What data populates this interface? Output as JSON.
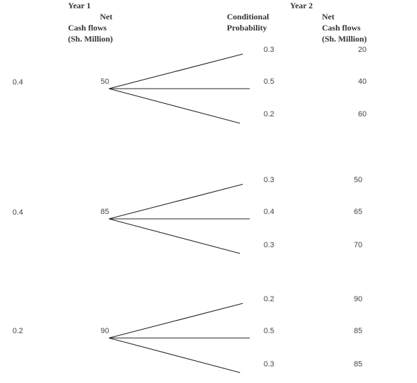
{
  "headers": {
    "year1": "Year 1",
    "year2": "Year 2",
    "net_cash_flows_y1": [
      "Net",
      "Cash flows",
      "(Sh. Million)"
    ],
    "conditional_probability": [
      "Conditional",
      "Probability"
    ],
    "net_cash_flows_y2": [
      "Net",
      "Cash flows",
      "(Sh. Million)"
    ]
  },
  "branches": [
    {
      "probability": "0.4",
      "cash_flow": "50",
      "outcomes": [
        {
          "conditional_probability": "0.3",
          "cash_flow": "20"
        },
        {
          "conditional_probability": "0.5",
          "cash_flow": "40"
        },
        {
          "conditional_probability": "0.2",
          "cash_flow": "60"
        }
      ]
    },
    {
      "probability": "0.4",
      "cash_flow": "85",
      "outcomes": [
        {
          "conditional_probability": "0.3",
          "cash_flow": "50"
        },
        {
          "conditional_probability": "0.4",
          "cash_flow": "65"
        },
        {
          "conditional_probability": "0.3",
          "cash_flow": "70"
        }
      ]
    },
    {
      "probability": "0.2",
      "cash_flow": "90",
      "outcomes": [
        {
          "conditional_probability": "0.2",
          "cash_flow": "90"
        },
        {
          "conditional_probability": "0.5",
          "cash_flow": "85"
        },
        {
          "conditional_probability": "0.3",
          "cash_flow": "85"
        }
      ]
    }
  ]
}
